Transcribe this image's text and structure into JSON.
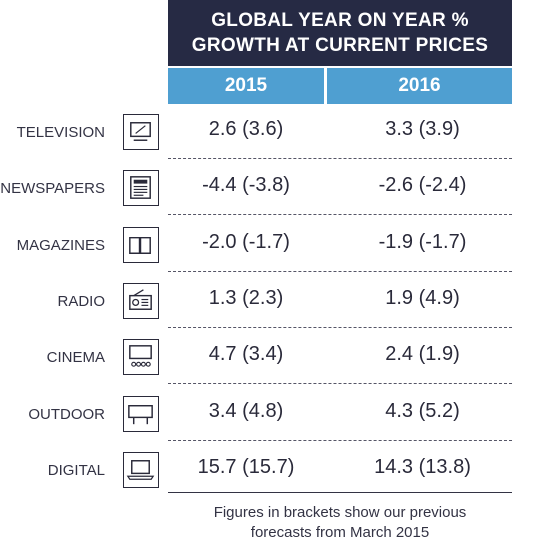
{
  "chart_data": {
    "type": "table",
    "title_lines": [
      "GLOBAL YEAR ON YEAR %",
      "GROWTH AT CURRENT PRICES"
    ],
    "columns": [
      "2015",
      "2016"
    ],
    "rows": [
      {
        "label": "TELEVISION",
        "icon": "television-icon",
        "values": [
          "2.6 (3.6)",
          "3.3 (3.9)"
        ]
      },
      {
        "label": "NEWSPAPERS",
        "icon": "newspaper-icon",
        "values": [
          "-4.4 (-3.8)",
          "-2.6 (-2.4)"
        ]
      },
      {
        "label": "MAGAZINES",
        "icon": "magazine-icon",
        "values": [
          "-2.0 (-1.7)",
          "-1.9 (-1.7)"
        ]
      },
      {
        "label": "RADIO",
        "icon": "radio-icon",
        "values": [
          "1.3 (2.3)",
          "1.9 (4.9)"
        ]
      },
      {
        "label": "CINEMA",
        "icon": "cinema-icon",
        "values": [
          "4.7 (3.4)",
          "2.4 (1.9)"
        ]
      },
      {
        "label": "OUTDOOR",
        "icon": "billboard-icon",
        "values": [
          "3.4 (4.8)",
          "4.3 (5.2)"
        ]
      },
      {
        "label": "DIGITAL",
        "icon": "laptop-icon",
        "values": [
          "15.7 (15.7)",
          "14.3 (13.8)"
        ]
      }
    ],
    "footnote_lines": [
      "Figures in brackets show our previous",
      "forecasts from March 2015"
    ]
  },
  "colors": {
    "title_bg": "#262a44",
    "header_bg": "#4f9fd1",
    "text": "#2a2a3a"
  }
}
